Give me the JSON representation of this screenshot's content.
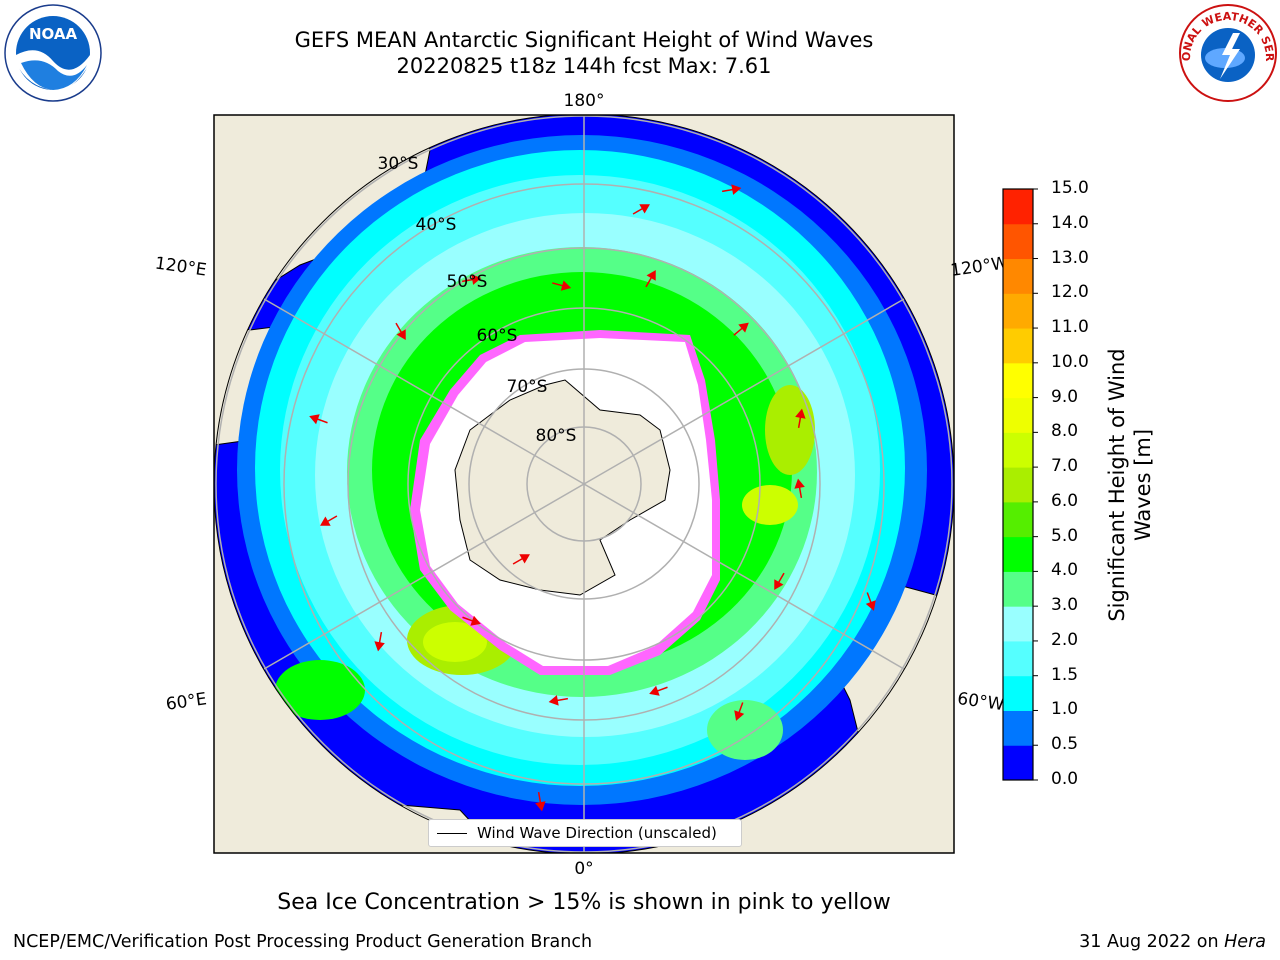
{
  "title": {
    "line1": "GEFS MEAN Antarctic Significant Height of Wind Waves",
    "line2": "20220825 t18z 144h fcst   Max: 7.61"
  },
  "logos": {
    "noaa_text": "NOAA",
    "nws_text": "NATIONAL WEATHER SERVICE"
  },
  "map": {
    "longitude_labels": [
      "180°",
      "120°E",
      "120°W",
      "60°E",
      "60°W",
      "0°"
    ],
    "latitude_labels": [
      "30°S",
      "40°S",
      "50°S",
      "60°S",
      "70°S",
      "80°S"
    ],
    "legend_label": "Wind Wave Direction (unscaled)"
  },
  "colorbar": {
    "label_line1": "Significant Height of Wind",
    "label_line2": "Waves [m]",
    "ticks": [
      "15.0",
      "14.0",
      "13.0",
      "12.0",
      "11.0",
      "10.0",
      "9.0",
      "8.0",
      "7.0",
      "6.0",
      "5.0",
      "4.0",
      "3.0",
      "2.0",
      "1.5",
      "1.0",
      "0.5",
      "0.0"
    ],
    "colors": [
      "#0000ff",
      "#0077ff",
      "#00ffff",
      "#55ffff",
      "#99ffff",
      "#55ff88",
      "#00ff00",
      "#55ee00",
      "#aaee00",
      "#ccff00",
      "#eeff00",
      "#ffff00",
      "#ffcc00",
      "#ffaa00",
      "#ff8800",
      "#ff5500",
      "#ff2200"
    ]
  },
  "sea_ice_note": "Sea Ice Concentration > 15% is shown in pink to yellow",
  "footer": {
    "left": "NCEP/EMC/Verification Post Processing Product Generation Branch",
    "right_date": "31 Aug 2022 on ",
    "right_machine": "Hera"
  }
}
